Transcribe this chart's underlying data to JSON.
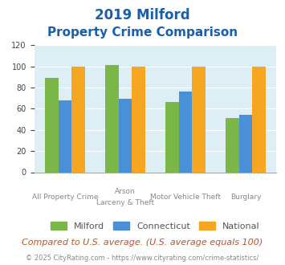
{
  "title_line1": "2019 Milford",
  "title_line2": "Property Crime Comparison",
  "x_labels_top": [
    "",
    "Arson",
    "Motor Vehicle Theft",
    ""
  ],
  "x_labels_bot": [
    "All Property Crime",
    "Larceny & Theft",
    "",
    "Burglary"
  ],
  "series": {
    "Milford": [
      89,
      101,
      66,
      51
    ],
    "Connecticut": [
      68,
      69,
      76,
      54
    ],
    "National": [
      100,
      100,
      100,
      100
    ]
  },
  "colors": {
    "Milford": "#7ab648",
    "Connecticut": "#4a90d9",
    "National": "#f5a623"
  },
  "ylim": [
    0,
    120
  ],
  "yticks": [
    0,
    20,
    40,
    60,
    80,
    100,
    120
  ],
  "background_color": "#ddeef4",
  "title_color": "#1a5fa8",
  "footer_text": "Compared to U.S. average. (U.S. average equals 100)",
  "copyright_text": "© 2025 CityRating.com - https://www.cityrating.com/crime-statistics/",
  "footer_color": "#b8542a",
  "copyright_color": "#888888",
  "bar_width": 0.22
}
